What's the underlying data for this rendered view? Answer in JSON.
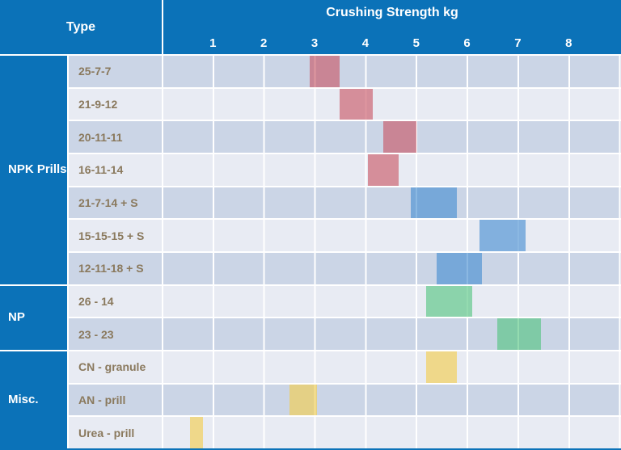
{
  "header": {
    "type_label": "Type",
    "chart_title": "Crushing Strength kg"
  },
  "colors": {
    "header_blue": "#0b72b8",
    "row_dark": "#cbd5e6",
    "row_light": "#e8ebf3",
    "label_text": "#8a795d",
    "bar_red": "rgba(200,80,95,0.6)",
    "bar_blue": "rgba(67,141,208,0.62)",
    "bar_green": "rgba(77,195,123,0.6)",
    "bar_yellow": "rgba(244,205,73,0.62)"
  },
  "chart_data": {
    "type": "bar",
    "orientation": "horizontal-range-gantt",
    "title": "Crushing Strength kg",
    "xlabel": "Crushing Strength kg",
    "ylabel": "Type",
    "xlim": [
      0,
      9
    ],
    "xticks": [
      1,
      2,
      3,
      4,
      5,
      6,
      7,
      8
    ],
    "grid": true,
    "groups": [
      {
        "label": "NPK Prills",
        "row_span": 7
      },
      {
        "label": "NP",
        "row_span": 2
      },
      {
        "label": "Misc.",
        "row_span": 3
      }
    ],
    "rows": [
      {
        "group": "NPK Prills",
        "label": "25-7-7",
        "range_kg": [
          2.9,
          3.5
        ],
        "color_key": "bar_red"
      },
      {
        "group": "NPK Prills",
        "label": "21-9-12",
        "range_kg": [
          3.5,
          4.15
        ],
        "color_key": "bar_red"
      },
      {
        "group": "NPK Prills",
        "label": "20-11-11",
        "range_kg": [
          4.35,
          5.0
        ],
        "color_key": "bar_red"
      },
      {
        "group": "NPK Prills",
        "label": "16-11-14",
        "range_kg": [
          4.05,
          4.65
        ],
        "color_key": "bar_red"
      },
      {
        "group": "NPK Prills",
        "label": "21-7-14 + S",
        "range_kg": [
          4.9,
          5.8
        ],
        "color_key": "bar_blue"
      },
      {
        "group": "NPK Prills",
        "label": "15-15-15 + S",
        "range_kg": [
          6.25,
          7.15
        ],
        "color_key": "bar_blue"
      },
      {
        "group": "NPK Prills",
        "label": "12-11-18 + S",
        "range_kg": [
          5.4,
          6.3
        ],
        "color_key": "bar_blue"
      },
      {
        "group": "NP",
        "label": "26 - 14",
        "range_kg": [
          5.2,
          6.1
        ],
        "color_key": "bar_green"
      },
      {
        "group": "NP",
        "label": "23 - 23",
        "range_kg": [
          6.6,
          7.45
        ],
        "color_key": "bar_green"
      },
      {
        "group": "Misc.",
        "label": "CN - granule",
        "range_kg": [
          5.2,
          5.8
        ],
        "color_key": "bar_yellow"
      },
      {
        "group": "Misc.",
        "label": "AN - prill",
        "range_kg": [
          2.5,
          3.05
        ],
        "color_key": "bar_yellow"
      },
      {
        "group": "Misc.",
        "label": "Urea - prill",
        "range_kg": [
          0.55,
          0.8
        ],
        "color_key": "bar_yellow"
      }
    ]
  }
}
